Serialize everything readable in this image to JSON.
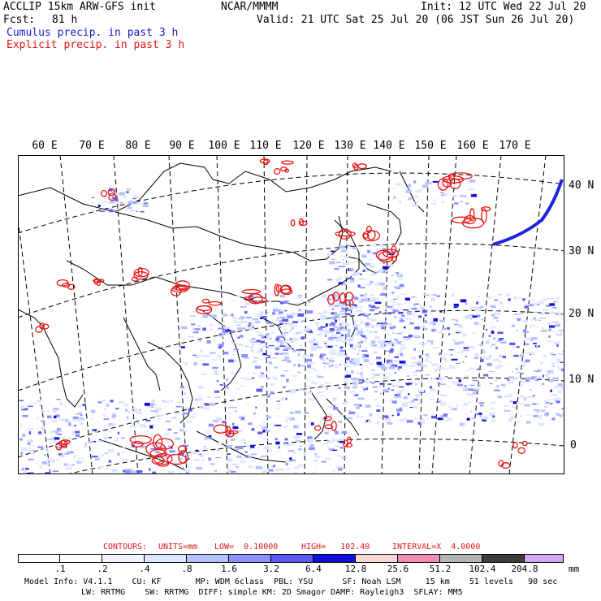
{
  "header": {
    "model": "ACCLIP 15km ARW-GFS init",
    "org": "NCAR/MMMM",
    "init": "Init: 12 UTC Wed 22 Jul 20",
    "fcst_label": "Fcst:",
    "fcst_value": "81 h",
    "valid": "Valid: 21 UTC Sat 25 Jul 20 (06 JST Sun 26 Jul 20)",
    "cumulus": "Cumulus precip. in past 3 h",
    "explicit": "Explicit precip. in past 3 h"
  },
  "map": {
    "lon_labels": [
      "60 E",
      "70 E",
      "80 E",
      "90 E",
      "100 E",
      "110 E",
      "120 E",
      "130 E",
      "140 E",
      "150 E",
      "160 E",
      "170 E"
    ],
    "lat_labels": [
      "40 N",
      "30 N",
      "20 N",
      "10 N",
      "0"
    ],
    "colors": {
      "cumulus": "#2a2ae6",
      "explicit": "#e81616",
      "coast": "#000000",
      "grid": "#000000"
    }
  },
  "contours": {
    "label": "CONTOURS:",
    "units": "UNITS=mm",
    "low": "LOW=  0.10000",
    "high": "HIGH=   102.40",
    "interval": "INTERVAL=X  4.0000",
    "color": "#d00000"
  },
  "colorbar": {
    "unit": "mm",
    "levels": [
      ".1",
      ".2",
      ".4",
      ".8",
      "1.6",
      "3.2",
      "6.4",
      "12.8",
      "25.6",
      "51.2",
      "102.4",
      "204.8"
    ],
    "colors": [
      "#ffffff",
      "#ffffff",
      "#f0f4ff",
      "#dbe4ff",
      "#b4c2ff",
      "#8c90ff",
      "#5a5af0",
      "#1010d8",
      "#fbd8d8",
      "#f08cb4",
      "#b4b4b4",
      "#3c3c3c",
      "#d2a6f0"
    ]
  },
  "footer": {
    "line1": "Model Info: V4.1.1    CU: KF       MP: WDM 6class  PBL: YSU      SF: Noah LSM     15 km    51 levels   90 sec",
    "line2": "LW: RRTMG    SW: RRTMG  DIFF: simple KM: 2D Smagor DAMP: Rayleigh3  SFLAY: MM5"
  }
}
